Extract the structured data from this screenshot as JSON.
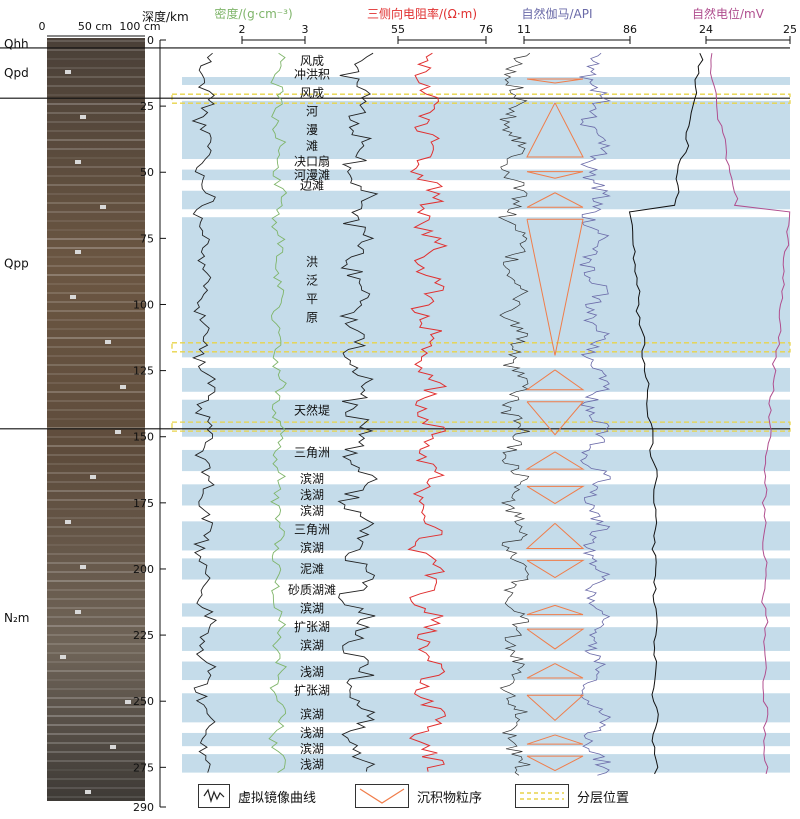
{
  "core_scale": {
    "ticks": [
      "0",
      "50 cm",
      "100 cm"
    ]
  },
  "depth_axis": {
    "title": "深度/km",
    "min": 0,
    "max": 290,
    "ticks": [
      0,
      25,
      50,
      75,
      100,
      125,
      150,
      175,
      200,
      225,
      250,
      275,
      290
    ]
  },
  "tracks": [
    {
      "title": "密度/(g·cm⁻³)",
      "color": "#7fb56a",
      "ticks": [
        "2",
        "3"
      ]
    },
    {
      "title": "三侧向电阻率/(Ω·m)",
      "color": "#e03030",
      "ticks": [
        "55",
        "76"
      ]
    },
    {
      "title": "自然伽马/API",
      "color": "#6a6aa8",
      "ticks": [
        "11",
        "86"
      ]
    },
    {
      "title": "自然电位/mV",
      "color": "#b04f8f",
      "ticks": [
        "24",
        "25"
      ]
    }
  ],
  "strata": [
    {
      "label": "Qhh",
      "top": 0,
      "bottom": 3
    },
    {
      "label": "Qpd",
      "top": 3,
      "bottom": 22
    },
    {
      "label": "Qpp",
      "top": 22,
      "bottom": 147
    },
    {
      "label": "N₂m",
      "top": 147,
      "bottom": 290
    }
  ],
  "facies": [
    "风成",
    "冲洪积",
    "风成",
    "河",
    "漫",
    "滩",
    "决口扇",
    "河漫滩",
    "边滩",
    "洪",
    "泛",
    "平",
    "原",
    "天然堤",
    "三角洲",
    "滨湖",
    "浅湖",
    "滨湖",
    "三角洲",
    "滨湖",
    "泥滩",
    "砂质湖滩",
    "滨湖",
    "扩张湖",
    "滨湖",
    "浅湖",
    "扩张湖",
    "滨湖",
    "浅湖",
    "滨湖",
    "浅湖"
  ],
  "bands": [
    [
      14,
      17
    ],
    [
      23,
      45
    ],
    [
      49,
      53
    ],
    [
      57,
      64
    ],
    [
      67,
      120
    ],
    [
      124,
      133
    ],
    [
      136,
      150
    ],
    [
      155,
      163
    ],
    [
      168,
      176
    ],
    [
      182,
      193
    ],
    [
      196,
      204
    ],
    [
      213,
      218
    ],
    [
      222,
      231
    ],
    [
      235,
      242
    ],
    [
      247,
      258
    ],
    [
      262,
      267
    ],
    [
      270,
      277
    ]
  ],
  "layer_boundaries": [
    22,
    116,
    146
  ],
  "legend": {
    "mirror": "虚拟镜像曲线",
    "grain": "沉积物粒序",
    "boundary": "分层位置"
  },
  "colors": {
    "band": "#c5dcea",
    "boundary": "#e8d44a",
    "grain": "#f07d4a",
    "mirror": "#222222"
  }
}
